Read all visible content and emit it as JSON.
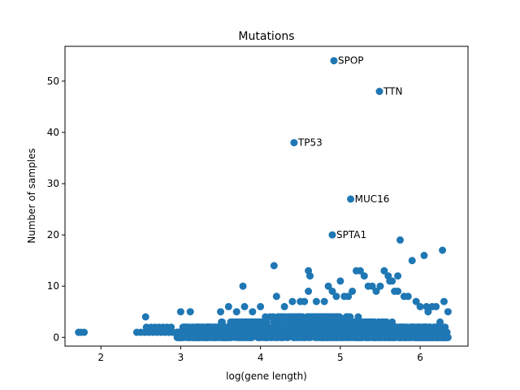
{
  "chart_data": {
    "type": "scatter",
    "title": "Mutations",
    "xlabel": "log(gene length)",
    "ylabel": "Number of samples",
    "xlim": [
      1.55,
      6.6
    ],
    "ylim": [
      -1.7,
      56.8
    ],
    "xticks": [
      2,
      3,
      4,
      5,
      6
    ],
    "yticks": [
      0,
      10,
      20,
      30,
      40,
      50
    ],
    "grid": false,
    "marker_color": "#1f77b4",
    "annotations": [
      {
        "label": "SPOP",
        "x": 4.92,
        "y": 54
      },
      {
        "label": "TTN",
        "x": 5.49,
        "y": 48
      },
      {
        "label": "TP53",
        "x": 4.42,
        "y": 38
      },
      {
        "label": "MUC16",
        "x": 5.13,
        "y": 27
      },
      {
        "label": "SPTA1",
        "x": 4.9,
        "y": 20
      }
    ],
    "series": [
      {
        "x": [
          1.72,
          1.75,
          1.79,
          2.45,
          2.5,
          2.55,
          2.6,
          2.65,
          2.7,
          2.75,
          2.8,
          2.85,
          2.9,
          2.57,
          2.63,
          2.68,
          2.73,
          2.78,
          2.83,
          2.88,
          2.56,
          4.17,
          4.6,
          4.62,
          3.78,
          5.2,
          5.25,
          5.3,
          5.4,
          5.55,
          5.6,
          5.65,
          5.72,
          5.9,
          5.72,
          5.8,
          5.75,
          6.28,
          6.05,
          6.08,
          6.3,
          6.35,
          6.25,
          6.2,
          4.85,
          4.9,
          5.0,
          4.95,
          4.6,
          4.2,
          4.4,
          4.3,
          4.7,
          4.8,
          5.1,
          5.15,
          5.35,
          5.45,
          5.5,
          5.62,
          5.68,
          5.85,
          5.95,
          6.0,
          6.1,
          6.15,
          3.0,
          3.12,
          3.5,
          3.6,
          3.7,
          3.8,
          3.9,
          4.0,
          4.5,
          4.55,
          5.05
        ],
        "y": [
          1,
          1,
          1,
          1,
          1,
          1,
          1,
          1,
          1,
          1,
          1,
          1,
          1,
          2,
          2,
          2,
          2,
          2,
          2,
          2,
          4,
          14,
          13,
          12,
          10,
          13,
          13,
          12,
          10,
          13,
          12,
          11,
          12,
          15,
          9,
          8,
          19,
          17,
          16,
          6,
          7,
          5,
          3,
          6,
          10,
          9,
          11,
          8,
          9,
          8,
          7,
          6,
          7,
          7,
          8,
          9,
          10,
          9,
          10,
          11,
          9,
          8,
          7,
          6,
          5,
          6,
          5,
          5,
          5,
          6,
          5,
          6,
          5,
          6,
          7,
          7,
          8
        ]
      }
    ],
    "dense_band": {
      "x_range": [
        2.95,
        6.35
      ],
      "y_max": 4,
      "note": "many overlapping points with values 0-4"
    }
  }
}
